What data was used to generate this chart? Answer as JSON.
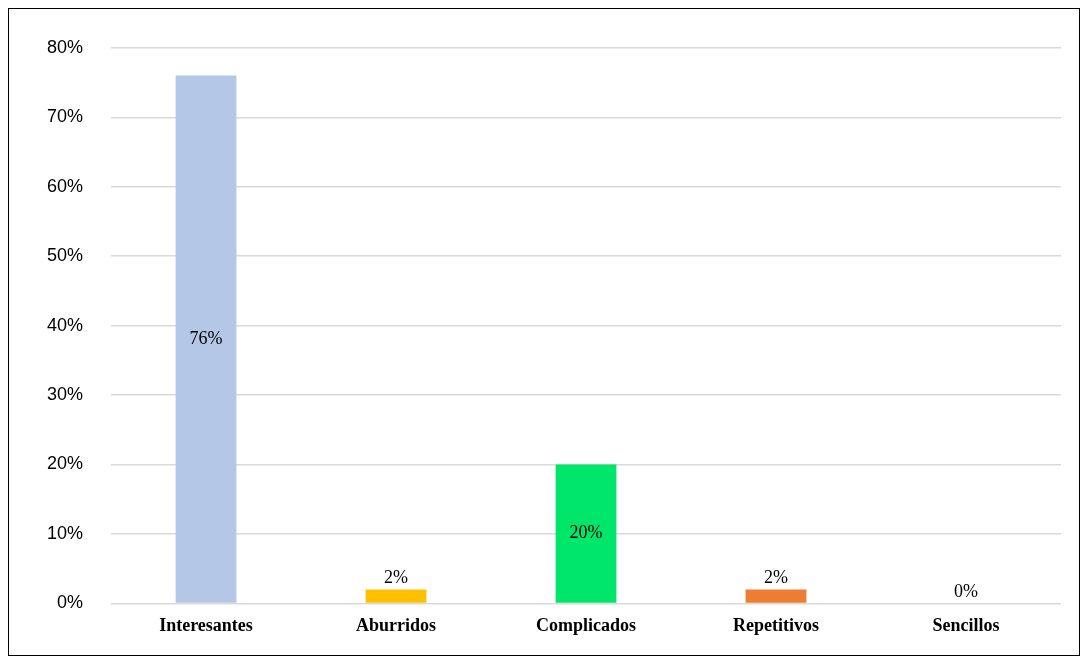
{
  "chart_data": {
    "type": "bar",
    "categories": [
      "Interesantes",
      "Aburridos",
      "Complicados",
      "Repetitivos",
      "Sencillos"
    ],
    "values": [
      76,
      2,
      20,
      2,
      0
    ],
    "colors": [
      "#b4c7e7",
      "#ffc000",
      "#00e66b",
      "#ed7d31",
      "#a5a5a5"
    ],
    "value_labels": [
      "76%",
      "2%",
      "20%",
      "2%",
      "0%"
    ],
    "ylim": [
      0,
      80
    ],
    "yticks": [
      {
        "value": 0,
        "label": "0%"
      },
      {
        "value": 10,
        "label": "10%"
      },
      {
        "value": 20,
        "label": "20%"
      },
      {
        "value": 30,
        "label": "30%"
      },
      {
        "value": 40,
        "label": "40%"
      },
      {
        "value": 50,
        "label": "50%"
      },
      {
        "value": 60,
        "label": "60%"
      },
      {
        "value": 70,
        "label": "70%"
      },
      {
        "value": 80,
        "label": "80%"
      }
    ],
    "grid": "y",
    "legend": false
  }
}
